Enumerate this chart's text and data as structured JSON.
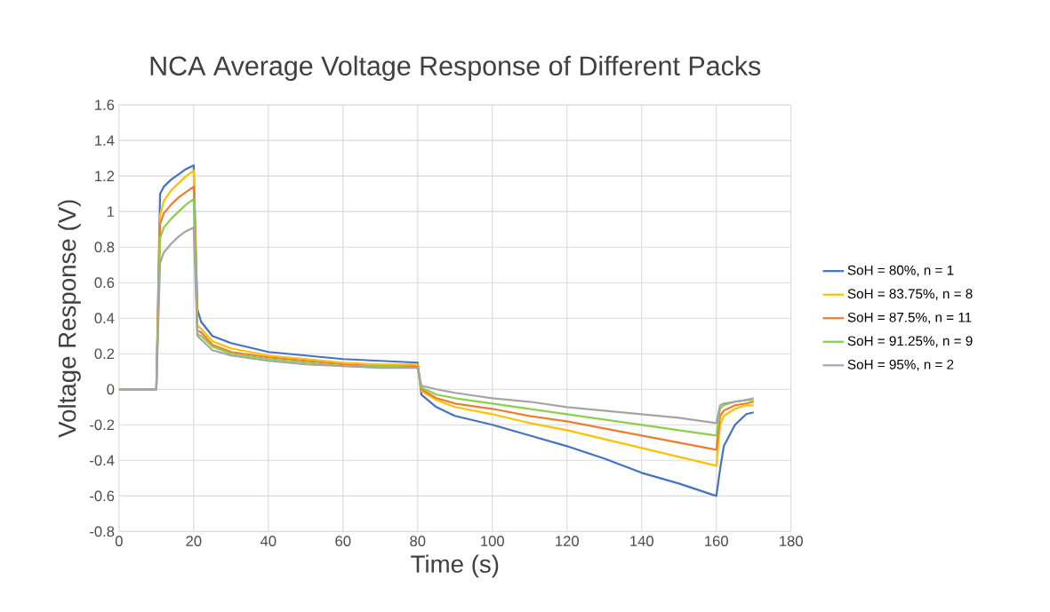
{
  "chart_data": {
    "type": "line",
    "title": "NCA Average Voltage Response of Different Packs",
    "xlabel": "Time (s)",
    "ylabel": "Voltage Response (V)",
    "x": [
      0,
      10,
      11,
      12,
      14,
      16,
      18,
      20,
      21,
      22,
      25,
      30,
      40,
      50,
      60,
      70,
      80,
      81,
      85,
      90,
      100,
      110,
      120,
      130,
      140,
      150,
      160,
      161,
      162,
      165,
      168,
      170
    ],
    "series": [
      {
        "name": "SoH = 80%, n = 1",
        "color": "#4472c4",
        "values": [
          0,
          0,
          1.1,
          1.14,
          1.18,
          1.21,
          1.24,
          1.26,
          0.45,
          0.38,
          0.3,
          0.26,
          0.21,
          0.19,
          0.17,
          0.16,
          0.15,
          -0.03,
          -0.1,
          -0.15,
          -0.2,
          -0.26,
          -0.32,
          -0.39,
          -0.47,
          -0.53,
          -0.6,
          -0.45,
          -0.32,
          -0.2,
          -0.14,
          -0.13
        ]
      },
      {
        "name": "SoH = 83.75%, n = 8",
        "color": "#ffc000",
        "values": [
          0,
          0,
          0.98,
          1.06,
          1.12,
          1.16,
          1.2,
          1.23,
          0.36,
          0.34,
          0.27,
          0.23,
          0.19,
          0.17,
          0.15,
          0.14,
          0.14,
          -0.01,
          -0.06,
          -0.1,
          -0.14,
          -0.19,
          -0.23,
          -0.28,
          -0.33,
          -0.38,
          -0.43,
          -0.2,
          -0.15,
          -0.11,
          -0.09,
          -0.09
        ]
      },
      {
        "name": "SoH = 87.5%, n = 11",
        "color": "#ed7d31",
        "values": [
          0,
          0,
          0.93,
          0.99,
          1.04,
          1.08,
          1.11,
          1.14,
          0.33,
          0.32,
          0.25,
          0.21,
          0.18,
          0.16,
          0.14,
          0.13,
          0.13,
          0,
          -0.05,
          -0.08,
          -0.11,
          -0.15,
          -0.18,
          -0.22,
          -0.26,
          -0.3,
          -0.34,
          -0.15,
          -0.12,
          -0.09,
          -0.08,
          -0.07
        ]
      },
      {
        "name": "SoH = 91.25%, n = 9",
        "color": "#8ccf4d",
        "values": [
          0,
          0,
          0.85,
          0.91,
          0.96,
          1.0,
          1.04,
          1.07,
          0.31,
          0.3,
          0.24,
          0.2,
          0.17,
          0.15,
          0.13,
          0.13,
          0.12,
          0.01,
          -0.03,
          -0.05,
          -0.08,
          -0.11,
          -0.14,
          -0.17,
          -0.2,
          -0.23,
          -0.26,
          -0.11,
          -0.09,
          -0.07,
          -0.06,
          -0.06
        ]
      },
      {
        "name": "SoH = 95%, n = 2",
        "color": "#a5a5a5",
        "values": [
          0,
          0,
          0.71,
          0.77,
          0.82,
          0.86,
          0.89,
          0.91,
          0.3,
          0.28,
          0.22,
          0.19,
          0.16,
          0.14,
          0.13,
          0.12,
          0.12,
          0.02,
          0,
          -0.02,
          -0.05,
          -0.07,
          -0.1,
          -0.12,
          -0.14,
          -0.16,
          -0.19,
          -0.09,
          -0.08,
          -0.07,
          -0.06,
          -0.05
        ]
      }
    ],
    "xlim": [
      0,
      180
    ],
    "xticks": [
      0,
      20,
      40,
      60,
      80,
      100,
      120,
      140,
      160,
      180
    ],
    "ylim": [
      -0.8,
      1.6
    ],
    "yticks": [
      -0.8,
      -0.6,
      -0.4,
      -0.2,
      0,
      0.2,
      0.4,
      0.6,
      0.8,
      1,
      1.2,
      1.4,
      1.6
    ],
    "grid": true,
    "legend": "right",
    "marker": "none",
    "line_style": "solid"
  }
}
